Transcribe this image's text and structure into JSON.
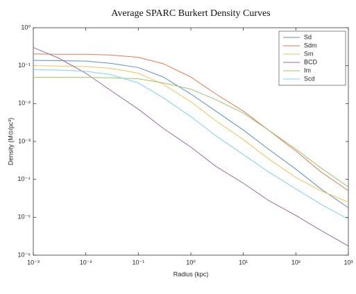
{
  "chart_data": {
    "type": "line",
    "title": "Average SPARC Burkert Density Curves",
    "xlabel": "Radius (kpc)",
    "ylabel": "Density (M⊙/pc³)",
    "xscale": "log",
    "yscale": "log",
    "legend": "upper right",
    "grid": false,
    "xlim": [
      0.001,
      1000
    ],
    "ylim": [
      1e-06,
      1
    ],
    "xticks": [
      {
        "value": 0.001,
        "label": "10⁻³"
      },
      {
        "value": 0.01,
        "label": "10⁻²"
      },
      {
        "value": 0.1,
        "label": "10⁻¹"
      },
      {
        "value": 1,
        "label": "10⁰"
      },
      {
        "value": 10,
        "label": "10¹"
      },
      {
        "value": 100,
        "label": "10²"
      },
      {
        "value": 1000,
        "label": "10³"
      }
    ],
    "yticks": [
      {
        "value": 1e-06,
        "label": "10⁻⁶"
      },
      {
        "value": 1e-05,
        "label": "10⁻⁵"
      },
      {
        "value": 0.0001,
        "label": "10⁻⁴"
      },
      {
        "value": 0.001,
        "label": "10⁻³"
      },
      {
        "value": 0.01,
        "label": "10⁻²"
      },
      {
        "value": 0.1,
        "label": "10⁻¹"
      },
      {
        "value": 1,
        "label": "10⁰"
      }
    ],
    "x": [
      0.001,
      0.003,
      0.01,
      0.03,
      0.1,
      0.3,
      1,
      3,
      10,
      30,
      100,
      300,
      1000
    ],
    "series": [
      {
        "name": "Sd",
        "color": "#5b8fd0",
        "values": [
          0.138,
          0.135,
          0.132,
          0.115,
          0.089,
          0.05,
          0.0178,
          0.0063,
          0.002,
          0.00063,
          0.000186,
          5.6e-05,
          1.78e-05
        ]
      },
      {
        "name": "Sdm",
        "color": "#e07a55",
        "values": [
          0.204,
          0.2,
          0.2,
          0.19,
          0.166,
          0.112,
          0.05,
          0.0178,
          0.0063,
          0.002,
          0.00056,
          0.000158,
          5e-05
        ]
      },
      {
        "name": "Sm",
        "color": "#f0c25c",
        "values": [
          0.1,
          0.098,
          0.095,
          0.085,
          0.063,
          0.032,
          0.0112,
          0.0035,
          0.00112,
          0.00035,
          0.000112,
          5e-05,
          2.5e-05
        ]
      },
      {
        "name": "BCD",
        "color": "#9b6aa8",
        "values": [
          0.3,
          0.16,
          0.063,
          0.022,
          0.0071,
          0.0022,
          0.00071,
          0.00022,
          7.9e-05,
          2.8e-05,
          1.12e-05,
          4.5e-06,
          1.74e-06
        ]
      },
      {
        "name": "Im",
        "color": "#98c36a",
        "values": [
          0.049,
          0.049,
          0.049,
          0.048,
          0.045,
          0.035,
          0.024,
          0.0126,
          0.0056,
          0.002,
          0.00063,
          0.0002,
          6.3e-05
        ]
      },
      {
        "name": "Scd",
        "color": "#7fd0f2",
        "values": [
          0.079,
          0.076,
          0.071,
          0.058,
          0.035,
          0.0141,
          0.0045,
          0.00141,
          0.00045,
          0.000158,
          5.6e-05,
          2.2e-05,
          8.9e-06
        ]
      }
    ]
  }
}
